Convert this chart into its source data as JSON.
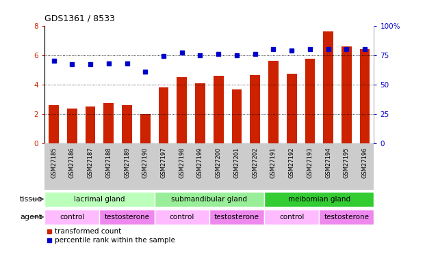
{
  "title": "GDS1361 / 8533",
  "samples": [
    "GSM27185",
    "GSM27186",
    "GSM27187",
    "GSM27188",
    "GSM27189",
    "GSM27190",
    "GSM27197",
    "GSM27198",
    "GSM27199",
    "GSM27200",
    "GSM27201",
    "GSM27202",
    "GSM27191",
    "GSM27192",
    "GSM27193",
    "GSM27194",
    "GSM27195",
    "GSM27196"
  ],
  "bar_values": [
    2.6,
    2.35,
    2.5,
    2.75,
    2.6,
    2.0,
    3.8,
    4.5,
    4.1,
    4.6,
    3.65,
    4.65,
    5.6,
    4.75,
    5.75,
    7.6,
    6.6,
    6.4
  ],
  "dot_values": [
    70,
    67,
    67,
    68,
    68,
    61,
    74,
    77,
    75,
    76,
    75,
    76,
    80,
    79,
    80,
    80,
    80,
    80
  ],
  "bar_color": "#cc2200",
  "dot_color": "#0000cc",
  "ylim_left": [
    0,
    8
  ],
  "ylim_right": [
    0,
    100
  ],
  "yticks_left": [
    0,
    2,
    4,
    6,
    8
  ],
  "yticks_right": [
    0,
    25,
    50,
    75,
    100
  ],
  "ytick_labels_right": [
    "0",
    "25",
    "50",
    "75",
    "100%"
  ],
  "grid_values": [
    2,
    4,
    6
  ],
  "tissues": [
    {
      "label": "lacrimal gland",
      "start": 0,
      "end": 6,
      "color": "#bbffbb"
    },
    {
      "label": "submandibular gland",
      "start": 6,
      "end": 12,
      "color": "#99ee99"
    },
    {
      "label": "meibomian gland",
      "start": 12,
      "end": 18,
      "color": "#33cc33"
    }
  ],
  "agents": [
    {
      "label": "control",
      "start": 0,
      "end": 3,
      "color": "#ffbbff"
    },
    {
      "label": "testosterone",
      "start": 3,
      "end": 6,
      "color": "#ee88ee"
    },
    {
      "label": "control",
      "start": 6,
      "end": 9,
      "color": "#ffbbff"
    },
    {
      "label": "testosterone",
      "start": 9,
      "end": 12,
      "color": "#ee88ee"
    },
    {
      "label": "control",
      "start": 12,
      "end": 15,
      "color": "#ffbbff"
    },
    {
      "label": "testosterone",
      "start": 15,
      "end": 18,
      "color": "#ee88ee"
    }
  ],
  "legend_bar_label": "transformed count",
  "legend_dot_label": "percentile rank within the sample",
  "tissue_label": "tissue",
  "agent_label": "agent",
  "xtick_bg": "#cccccc",
  "annotation_color": "#555555"
}
